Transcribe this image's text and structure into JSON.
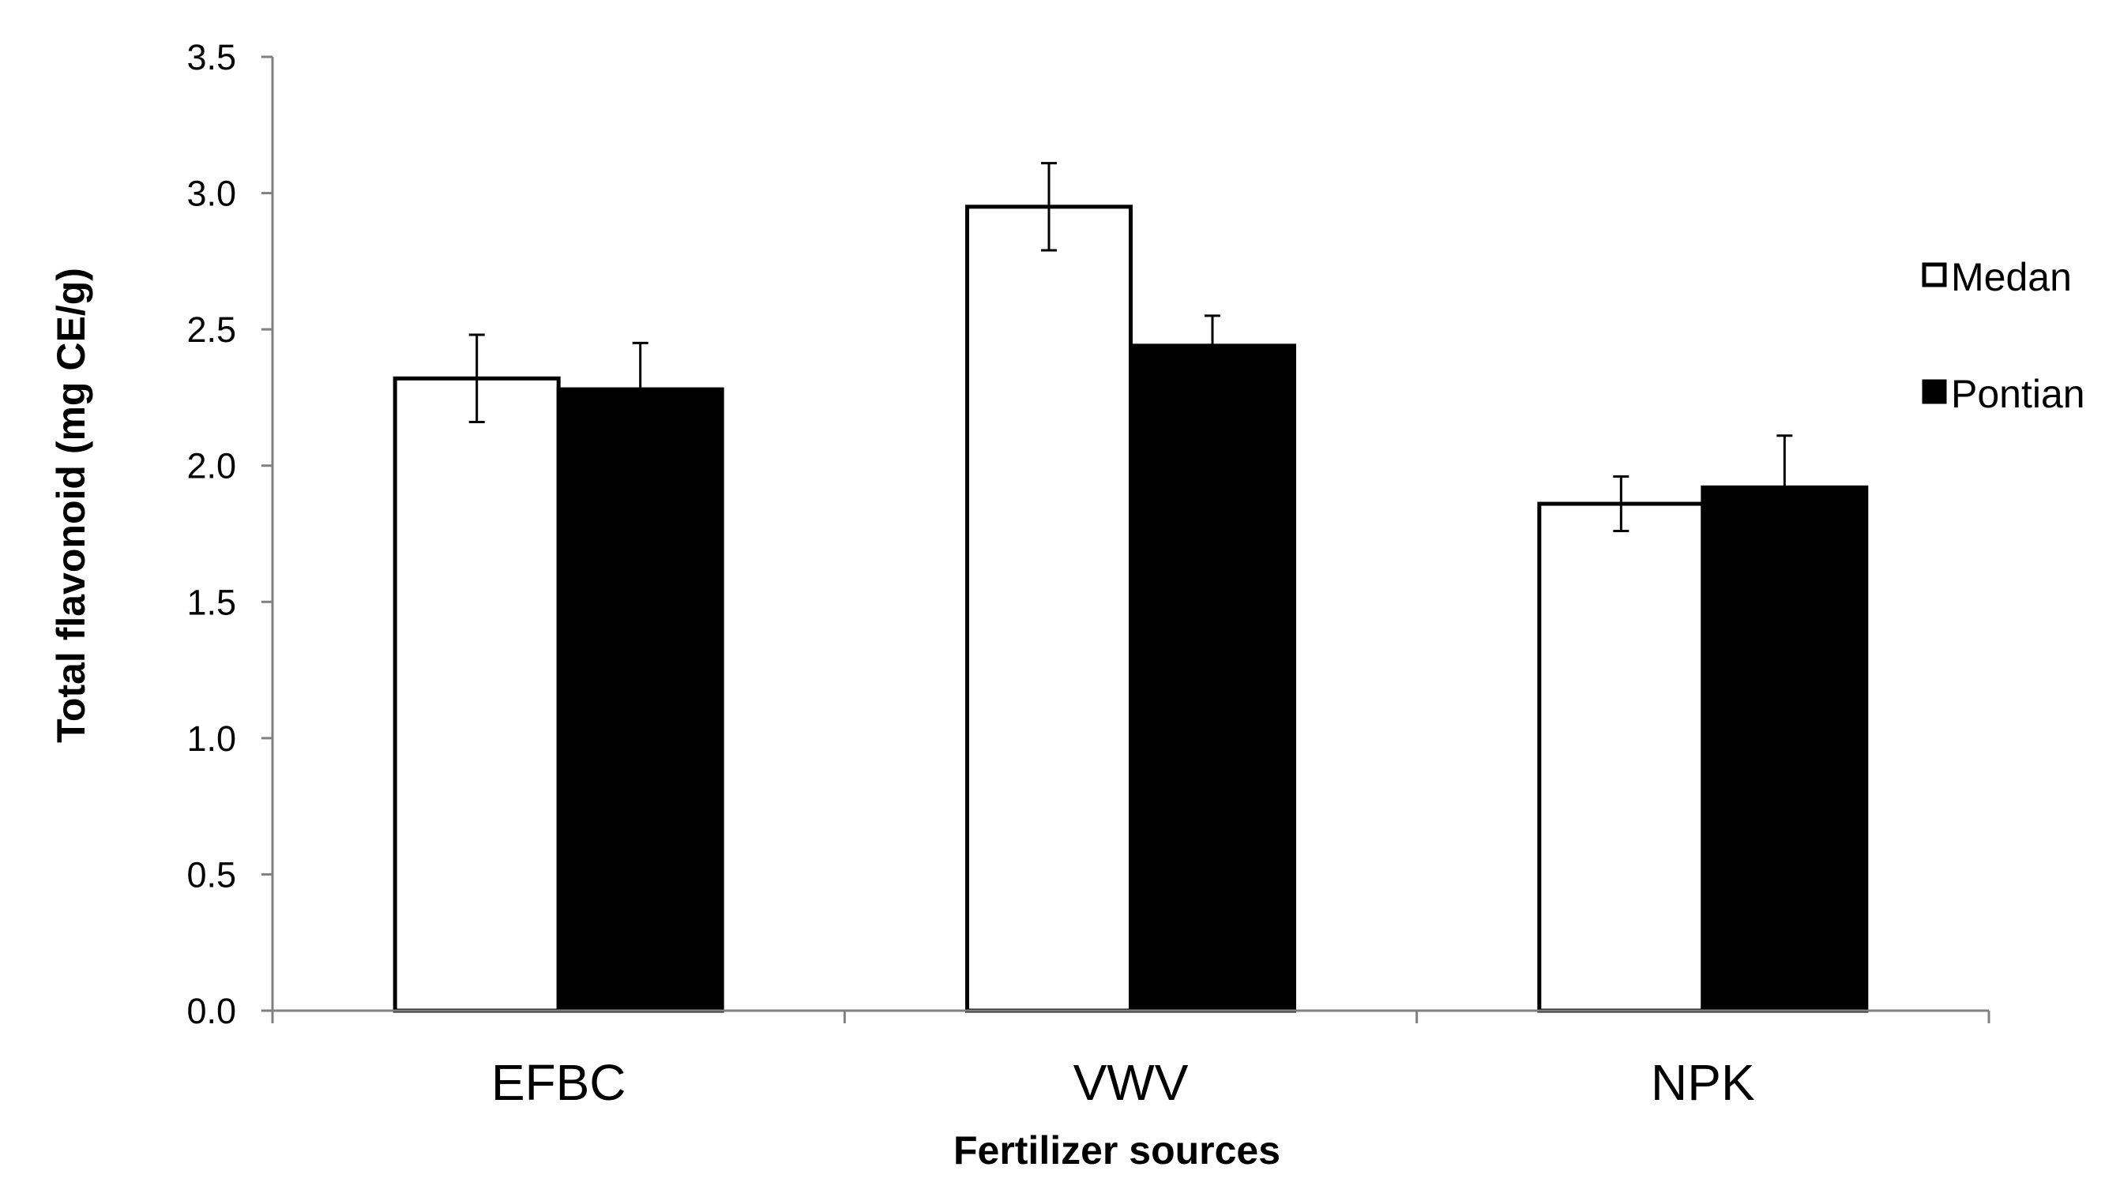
{
  "chart_data": {
    "type": "bar",
    "title": "",
    "xlabel": "Fertilizer sources",
    "ylabel": "Total flavonoid (mg CE/g)",
    "categories": [
      "EFBC",
      "VWV",
      "NPK"
    ],
    "ylim": [
      0,
      3.5
    ],
    "yticks": [
      "0.0",
      "0.5",
      "1.0",
      "1.5",
      "2.0",
      "2.5",
      "3.0",
      "3.5"
    ],
    "grid": false,
    "legend_position": "right",
    "series": [
      {
        "name": "Medan",
        "fill": "#ffffff",
        "values": [
          2.32,
          2.95,
          1.86
        ],
        "errors": [
          0.16,
          0.16,
          0.1
        ]
      },
      {
        "name": "Pontian",
        "fill": "#000000",
        "values": [
          2.28,
          2.44,
          1.92
        ],
        "errors": [
          0.17,
          0.11,
          0.19
        ]
      }
    ]
  }
}
